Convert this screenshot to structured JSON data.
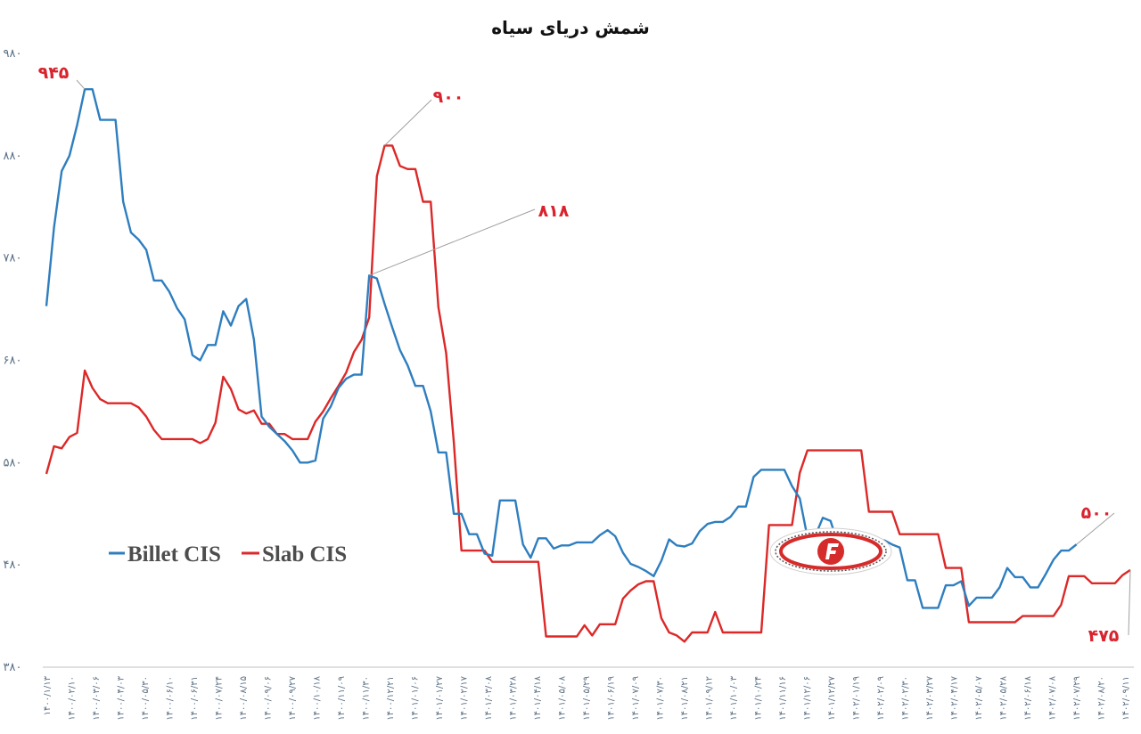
{
  "chart_data": {
    "type": "line",
    "title": "شمش دریای سیاه",
    "xlabel": "",
    "ylabel": "",
    "ylim": [
      380,
      980
    ],
    "yticks": [
      "۳۸۰",
      "۴۸۰",
      "۵۸۰",
      "۶۸۰",
      "۷۸۰",
      "۸۸۰",
      "۹۸۰"
    ],
    "ytick_values": [
      380,
      480,
      580,
      680,
      780,
      880,
      980
    ],
    "x_tick_labels": [
      "۱۴۰۰/۱/۱۳",
      "۱۴۰۰/۰۲/۱۰",
      "۱۴۰۰/۰۳/۰۶",
      "۱۴۰۰/۰۴/۰۳",
      "۱۴۰۰/۰۵/۳۰",
      "۱۴۰۰/۰۶/۱۰",
      "۱۴۰۰/۰۶/۳۱",
      "۱۴۰۰/۰۷/۲۴",
      "۱۴۰۰/۰۸/۱۵",
      "۱۴۰۰/۰۹/۰۶",
      "۱۴۰۰/۰۹/۲۷",
      "۱۴۰۰/۱۰/۱۸",
      "۱۴۰۰/۱۱/۰۹",
      "۱۴۰۰/۱۱/۳۰",
      "۱۴۰۰/۱۲/۲۱",
      "۱۴۰۱/۰۱/۰۶",
      "۱۴۰۱/۰۱/۲۷",
      "۱۴۰۱/۰۲/۱۷",
      "۱۴۰۱/۰۳/۰۸",
      "۱۴۰۱/۰۳/۲۸",
      "۱۴۰۱/۰۴/۱۸",
      "۱۴۰۱/۰۵/۰۸",
      "۱۴۰۱/۰۵/۲۹",
      "۱۴۰۱/۰۶/۱۹",
      "۱۴۰۱/۰۷/۰۹",
      "۱۴۰۱/۰۷/۳۰",
      "۱۴۰۱/۰۸/۲۱",
      "۱۴۰۱/۰۹/۱۲",
      "۱۴۰۱/۱۰/۰۳",
      "۱۴۰۱/۱۰/۲۴",
      "۱۴۰۱/۱۱/۱۶",
      "۱۴۰۱/۱۲/۰۶",
      "۱۴۰۱/۱۲/۲۷",
      "۱۴۰۲/۰۱/۱۹",
      "۱۴۰۲/۰۲/۰۹",
      "۱۴۰۲/۰۲/۳۰",
      "۱۴۰۲/۰۳/۲۷",
      "۱۴۰۲/۰۴/۱۷",
      "۱۴۰۲/۰۵/۰۷",
      "۱۴۰۲/۰۵/۲۸",
      "۱۴۰۲/۰۶/۱۸",
      "۱۴۰۲/۰۷/۰۸",
      "۱۴۰۲/۰۷/۲۹",
      "۱۴۰۲/۰۸/۲۰",
      "۱۴۰۲/۰۹/۱۱"
    ],
    "grid": false,
    "legend_position": "left-middle",
    "series": [
      {
        "name": "Billet CIS",
        "color": "#2e7ebf",
        "values": [
          733,
          810,
          865,
          880,
          910,
          945,
          945,
          915,
          915,
          915,
          835,
          805,
          798,
          788,
          758,
          758,
          747,
          731,
          720,
          685,
          680,
          695,
          695,
          728,
          714,
          733,
          740,
          700,
          625,
          615,
          608,
          601,
          592,
          580,
          580,
          582,
          623,
          635,
          653,
          662,
          666,
          666,
          763,
          760,
          735,
          712,
          690,
          675,
          655,
          655,
          630,
          590,
          590,
          530,
          530,
          510,
          510,
          491,
          489,
          543,
          543,
          543,
          500,
          487,
          506,
          506,
          496,
          499,
          499,
          502,
          502,
          502,
          509,
          514,
          508,
          492,
          481,
          478,
          474,
          469,
          484,
          505,
          499,
          498,
          501,
          513,
          520,
          522,
          522,
          527,
          537,
          537,
          566,
          573,
          573,
          573,
          573,
          557,
          545,
          507,
          508,
          526,
          523,
          500,
          500,
          500,
          500,
          500,
          500,
          504,
          500,
          497,
          465,
          465,
          438,
          438,
          438,
          460,
          460,
          464,
          440,
          448,
          448,
          448,
          458,
          477,
          468,
          468,
          458,
          458,
          471,
          485,
          494,
          494,
          500
        ]
      },
      {
        "name": "Slab CIS",
        "color": "#dc2828",
        "values": [
          569,
          596,
          594,
          605,
          609,
          670,
          653,
          642,
          638,
          638,
          638,
          638,
          634,
          625,
          612,
          603,
          603,
          603,
          603,
          603,
          599,
          603,
          619,
          664,
          652,
          632,
          628,
          631,
          618,
          618,
          608,
          608,
          603,
          603,
          603,
          620,
          630,
          643,
          655,
          668,
          688,
          700,
          722,
          860,
          890,
          890,
          870,
          867,
          867,
          835,
          835,
          732,
          687,
          600,
          494,
          494,
          494,
          494,
          483,
          483,
          483,
          483,
          483,
          483,
          483,
          410,
          410,
          410,
          410,
          410,
          421,
          411,
          422,
          422,
          422,
          447,
          455,
          461,
          464,
          464,
          428,
          414,
          411,
          405,
          414,
          414,
          414,
          434,
          414,
          414,
          414,
          414,
          414,
          414,
          519,
          519,
          519,
          519,
          570,
          592,
          592,
          592,
          592,
          592,
          592,
          592,
          592,
          532,
          532,
          532,
          532,
          510,
          510,
          510,
          510,
          510,
          510,
          477,
          477,
          477,
          424,
          424,
          424,
          424,
          424,
          424,
          424,
          430,
          430,
          430,
          430,
          430,
          441,
          469,
          469,
          469,
          462,
          462,
          462,
          462,
          470,
          475
        ]
      }
    ],
    "annotations": {
      "billet_max": "۹۴۵",
      "slab_peak": "۹۰۰",
      "billet_peak": "۸۱۸",
      "billet_last": "۵۰۰",
      "slab_last": "۴۷۵"
    }
  }
}
